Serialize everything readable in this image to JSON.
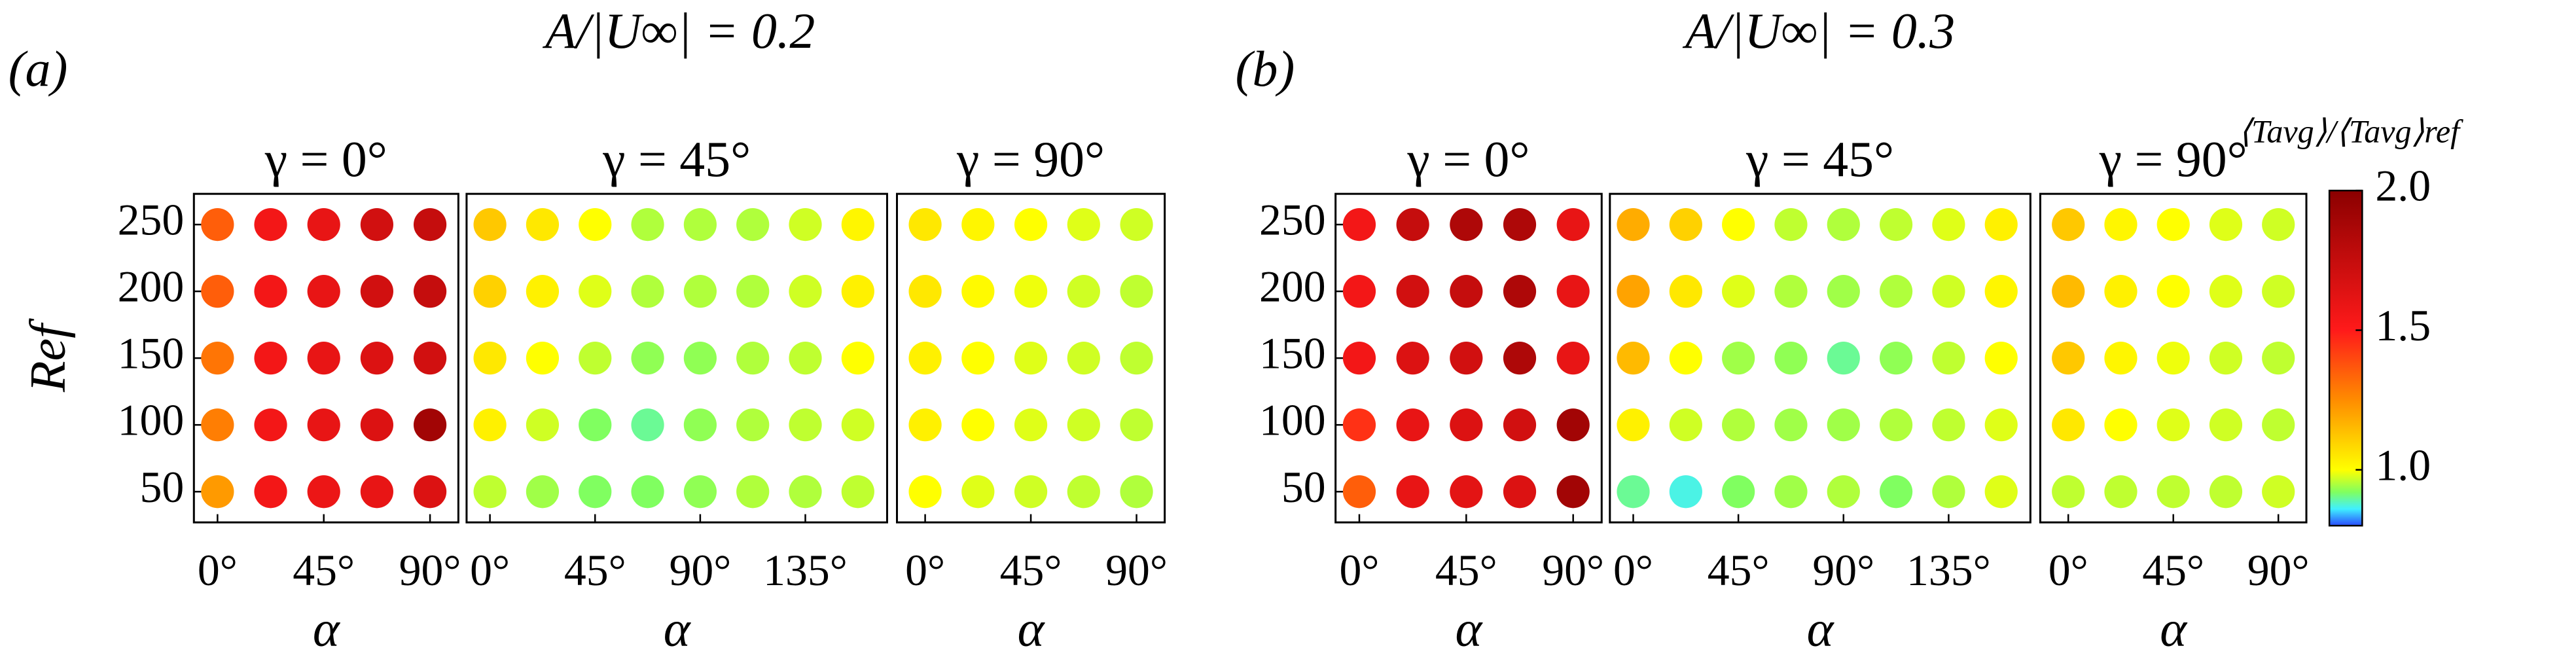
{
  "groups": [
    {
      "label": "(a)",
      "title": "A/|U∞| = 0.2"
    },
    {
      "label": "(b)",
      "title": "A/|U∞| = 0.3"
    }
  ],
  "colorbar": {
    "label": "⟨Tavg⟩/⟨Tavg⟩ref",
    "lim": [
      0.8,
      2.0
    ],
    "ticks": [
      {
        "value": 1,
        "label": "1.0"
      },
      1.5,
      {
        "value": 2,
        "label": "2.0"
      }
    ],
    "colormap": [
      {
        "value": 0.8,
        "color": "#2a4bff"
      },
      {
        "value": 0.86,
        "color": "#40f0ff"
      },
      {
        "value": 0.92,
        "color": "#80ff60"
      },
      {
        "value": 1.0,
        "color": "#ffff00"
      },
      {
        "value": 1.25,
        "color": "#ff8c00"
      },
      {
        "value": 1.5,
        "color": "#ff1a1a"
      },
      {
        "value": 2.0,
        "color": "#8b0000"
      }
    ]
  },
  "chart_data": [
    {
      "type": "scatter",
      "title": "γ = 0°",
      "x_label": "α",
      "y_label": "Ref",
      "x": [
        0,
        22.5,
        45,
        67.5,
        90
      ],
      "y": [
        250,
        200,
        150,
        100,
        50
      ],
      "xlim": [
        -10,
        102
      ],
      "ylim": [
        27,
        273
      ],
      "xticks": [
        {
          "value": 0,
          "label": "0°"
        },
        {
          "value": 45,
          "label": "45°"
        },
        {
          "value": 90,
          "label": "90°"
        }
      ],
      "yticks": [
        50,
        100,
        150,
        200,
        250
      ],
      "values": [
        [
          1.35,
          1.55,
          1.6,
          1.7,
          1.75
        ],
        [
          1.35,
          1.55,
          1.6,
          1.7,
          1.75
        ],
        [
          1.3,
          1.55,
          1.6,
          1.65,
          1.7
        ],
        [
          1.28,
          1.55,
          1.6,
          1.65,
          1.9
        ],
        [
          1.22,
          1.55,
          1.58,
          1.6,
          1.65
        ]
      ]
    },
    {
      "type": "scatter",
      "title": "γ = 45°",
      "x_label": "α",
      "x": [
        0,
        22.5,
        45,
        67.5,
        90,
        112.5,
        135,
        157.5
      ],
      "y": [
        250,
        200,
        150,
        100,
        50
      ],
      "xlim": [
        -10,
        170
      ],
      "ylim": [
        27,
        273
      ],
      "xticks": [
        {
          "value": 0,
          "label": "0°"
        },
        {
          "value": 45,
          "label": "45°"
        },
        {
          "value": 90,
          "label": "90°"
        },
        {
          "value": 135,
          "label": "135°"
        }
      ],
      "values": [
        [
          1.12,
          1.05,
          1.0,
          0.95,
          0.95,
          0.95,
          0.97,
          1.02
        ],
        [
          1.1,
          1.03,
          0.98,
          0.95,
          0.95,
          0.95,
          0.97,
          1.03
        ],
        [
          1.05,
          1.0,
          0.96,
          0.93,
          0.93,
          0.95,
          0.96,
          1.0
        ],
        [
          1.03,
          0.97,
          0.92,
          0.9,
          0.93,
          0.95,
          0.96,
          0.97
        ],
        [
          0.96,
          0.94,
          0.92,
          0.92,
          0.93,
          0.95,
          0.95,
          0.96
        ]
      ]
    },
    {
      "type": "scatter",
      "title": "γ = 90°",
      "x_label": "α",
      "x": [
        0,
        22.5,
        45,
        67.5,
        90
      ],
      "y": [
        250,
        200,
        150,
        100,
        50
      ],
      "xlim": [
        -12,
        102
      ],
      "ylim": [
        27,
        273
      ],
      "xticks": [
        {
          "value": 0,
          "label": "0°"
        },
        {
          "value": 45,
          "label": "45°"
        },
        {
          "value": 90,
          "label": "90°"
        }
      ],
      "values": [
        [
          1.05,
          1.02,
          1.0,
          0.98,
          0.97
        ],
        [
          1.05,
          1.01,
          0.99,
          0.97,
          0.96
        ],
        [
          1.03,
          1.0,
          0.98,
          0.97,
          0.96
        ],
        [
          1.03,
          1.0,
          0.98,
          0.97,
          0.96
        ],
        [
          1.0,
          0.98,
          0.97,
          0.96,
          0.95
        ]
      ]
    },
    {
      "type": "scatter",
      "title": "γ = 0°",
      "x_label": "α",
      "x": [
        0,
        22.5,
        45,
        67.5,
        90
      ],
      "y": [
        250,
        200,
        150,
        100,
        50
      ],
      "xlim": [
        -10,
        102
      ],
      "ylim": [
        27,
        273
      ],
      "xticks": [
        {
          "value": 0,
          "label": "0°"
        },
        {
          "value": 45,
          "label": "45°"
        },
        {
          "value": 90,
          "label": "90°"
        }
      ],
      "yticks": [
        50,
        100,
        150,
        200,
        250
      ],
      "values": [
        [
          1.55,
          1.75,
          1.85,
          1.85,
          1.6
        ],
        [
          1.55,
          1.7,
          1.75,
          1.85,
          1.6
        ],
        [
          1.55,
          1.65,
          1.7,
          1.85,
          1.6
        ],
        [
          1.45,
          1.6,
          1.65,
          1.7,
          1.9
        ],
        [
          1.35,
          1.6,
          1.62,
          1.65,
          1.9
        ]
      ]
    },
    {
      "type": "scatter",
      "title": "γ = 45°",
      "x_label": "α",
      "x": [
        0,
        22.5,
        45,
        67.5,
        90,
        112.5,
        135,
        157.5
      ],
      "y": [
        250,
        200,
        150,
        100,
        50
      ],
      "xlim": [
        -10,
        170
      ],
      "ylim": [
        27,
        273
      ],
      "xticks": [
        {
          "value": 0,
          "label": "0°"
        },
        {
          "value": 45,
          "label": "45°"
        },
        {
          "value": 90,
          "label": "90°"
        },
        {
          "value": 135,
          "label": "135°"
        }
      ],
      "values": [
        [
          1.18,
          1.1,
          1.0,
          0.96,
          0.95,
          0.96,
          0.98,
          1.03
        ],
        [
          1.2,
          1.05,
          0.98,
          0.95,
          0.94,
          0.95,
          0.97,
          1.02
        ],
        [
          1.15,
          1.0,
          0.94,
          0.93,
          0.9,
          0.93,
          0.96,
          1.0
        ],
        [
          1.03,
          0.97,
          0.95,
          0.94,
          0.94,
          0.95,
          0.96,
          0.98
        ],
        [
          0.9,
          0.87,
          0.92,
          0.94,
          0.95,
          0.92,
          0.95,
          0.98
        ]
      ]
    },
    {
      "type": "scatter",
      "title": "γ = 90°",
      "x_label": "α",
      "x": [
        0,
        22.5,
        45,
        67.5,
        90
      ],
      "y": [
        250,
        200,
        150,
        100,
        50
      ],
      "xlim": [
        -12,
        102
      ],
      "ylim": [
        27,
        273
      ],
      "xticks": [
        {
          "value": 0,
          "label": "0°"
        },
        {
          "value": 45,
          "label": "45°"
        },
        {
          "value": 90,
          "label": "90°"
        }
      ],
      "values": [
        [
          1.12,
          1.02,
          1.0,
          0.98,
          0.97
        ],
        [
          1.15,
          1.03,
          1.0,
          0.98,
          0.97
        ],
        [
          1.12,
          1.02,
          0.99,
          0.97,
          0.96
        ],
        [
          1.05,
          1.0,
          0.98,
          0.97,
          0.96
        ],
        [
          0.96,
          0.96,
          0.96,
          0.96,
          0.97
        ]
      ]
    }
  ]
}
